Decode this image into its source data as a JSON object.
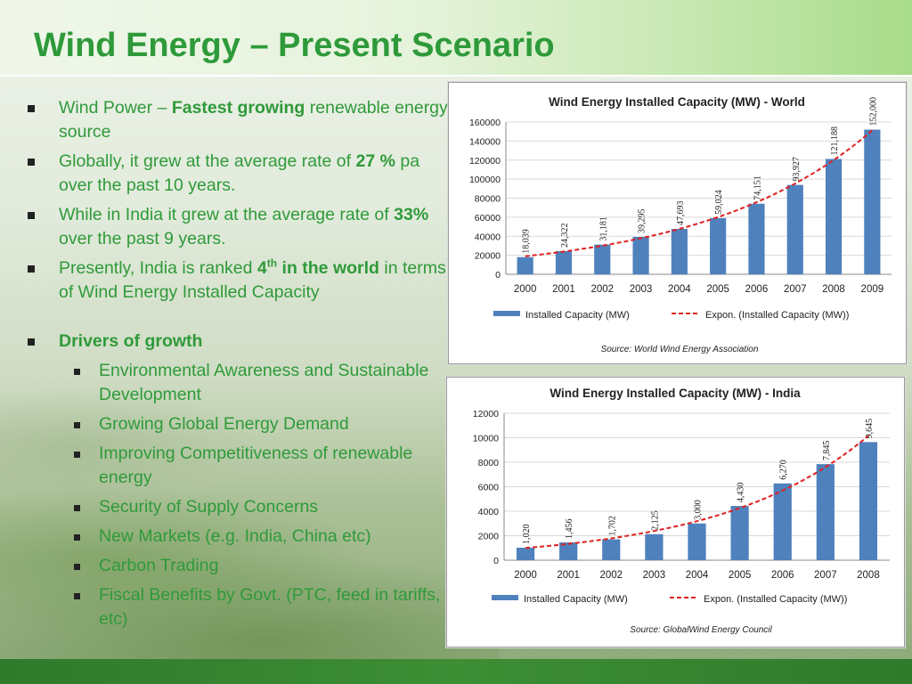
{
  "title": "Wind Energy – Present Scenario",
  "bullets": {
    "b1": {
      "pre": "Wind Power – ",
      "bold": "Fastest growing",
      "post": " renewable energy source"
    },
    "b2": {
      "pre": "Globally, it grew at the average rate of ",
      "bold": "27 %",
      "post": " pa over the past 10 years."
    },
    "b3": {
      "pre": "While in India it grew at the average rate of ",
      "bold": "33%",
      "post": " over the past 9 years."
    },
    "b4": {
      "pre": "Presently, India is ranked ",
      "bold1": "4",
      "sup": "th",
      "bold2": " in the world",
      "post": " in terms of Wind Energy Installed Capacity"
    },
    "drivers_heading": "Drivers of growth",
    "drivers": [
      "Environmental Awareness and Sustainable Development",
      "Growing Global Energy Demand",
      "Improving Competitiveness of renewable energy",
      "Security of Supply Concerns",
      "New Markets (e.g. India, China etc)",
      "Carbon Trading",
      "Fiscal Benefits by Govt. (PTC, feed in tariffs, etc)"
    ]
  },
  "colors": {
    "title": "#2e9a3a",
    "text": "#2f9a3a",
    "bar": "#4f81bd",
    "trend": "#e02020",
    "footer": "#2f7a2b"
  },
  "chart_data": [
    {
      "type": "bar",
      "title": "Wind Energy Installed Capacity (MW) - World",
      "categories": [
        "2000",
        "2001",
        "2002",
        "2003",
        "2004",
        "2005",
        "2006",
        "2007",
        "2008",
        "2009"
      ],
      "series": [
        {
          "name": "Installed Capacity (MW)",
          "values": [
            18039,
            24322,
            31181,
            39295,
            47693,
            59024,
            74151,
            93927,
            121188,
            152000
          ]
        }
      ],
      "data_labels": [
        "18,039",
        "24,322",
        "31,181",
        "39,295",
        "47,693",
        "59,024",
        "74,151",
        "93,927",
        "121,188",
        "152,000"
      ],
      "trend": {
        "name": "Expon. (Installed Capacity (MW))",
        "type": "exponential"
      },
      "ylim": [
        0,
        160000
      ],
      "yticks": [
        0,
        20000,
        40000,
        60000,
        80000,
        100000,
        120000,
        140000,
        160000
      ],
      "ytick_labels": [
        "0",
        "20000",
        "40000",
        "60000",
        "80000",
        "100000",
        "120000",
        "140000",
        "160000"
      ],
      "grid": true,
      "legend": "bottom",
      "source": "Source: World Wind Energy Association"
    },
    {
      "type": "bar",
      "title": "Wind Energy Installed Capacity (MW) - India",
      "categories": [
        "2000",
        "2001",
        "2002",
        "2003",
        "2004",
        "2005",
        "2006",
        "2007",
        "2008"
      ],
      "series": [
        {
          "name": "Installed Capacity (MW)",
          "values": [
            1020,
            1456,
            1702,
            2125,
            3000,
            4430,
            6270,
            7845,
            9645
          ]
        }
      ],
      "data_labels": [
        "1,020",
        "1,456",
        "1,702",
        "2,125",
        "3,000",
        "4,430",
        "6,270",
        "7,845",
        "9,645"
      ],
      "trend": {
        "name": "Expon. (Installed Capacity (MW))",
        "type": "exponential"
      },
      "ylim": [
        0,
        12000
      ],
      "yticks": [
        0,
        2000,
        4000,
        6000,
        8000,
        10000,
        12000
      ],
      "ytick_labels": [
        "0",
        "2000",
        "4000",
        "6000",
        "8000",
        "10000",
        "12000"
      ],
      "grid": true,
      "legend": "bottom",
      "source": "Source: GlobalWind Energy Council"
    }
  ]
}
